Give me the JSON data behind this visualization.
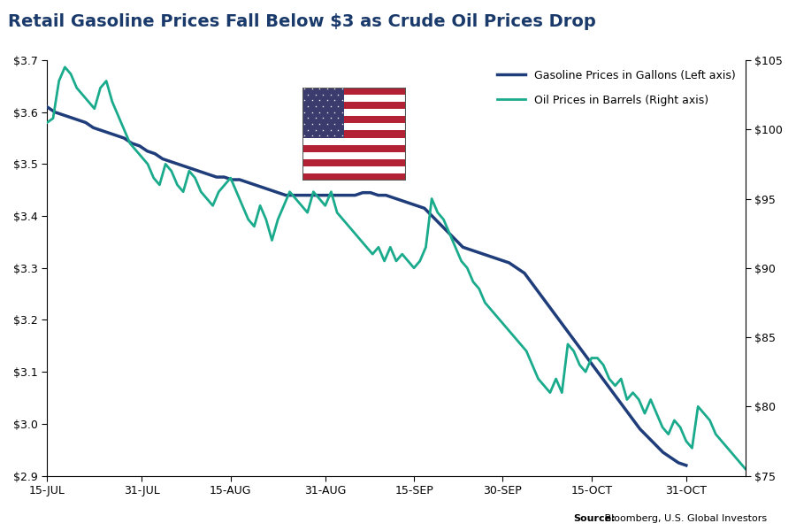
{
  "title": "Retail Gasoline Prices Fall Below $3 as Crude Oil Prices Drop",
  "title_color": "#1a3a6b",
  "title_fontsize": 14,
  "source_bold": "Source:",
  "source_rest": " Bloomberg, U.S. Global Investors",
  "left_ylim": [
    2.9,
    3.7
  ],
  "right_ylim": [
    75,
    105
  ],
  "left_yticks": [
    2.9,
    3.0,
    3.1,
    3.2,
    3.3,
    3.4,
    3.5,
    3.6,
    3.7
  ],
  "right_yticks": [
    75,
    80,
    85,
    90,
    95,
    100,
    105
  ],
  "gasoline_color": "#1f3d7a",
  "oil_color": "#1aaa8c",
  "gasoline_lw": 2.5,
  "oil_lw": 2.0,
  "legend_label_gasoline": "Gasoline Prices in Gallons (Left axis)",
  "legend_label_oil": "Oil Prices in Barrels (Right axis)",
  "gasoline_prices": [
    3.61,
    3.6,
    3.595,
    3.59,
    3.585,
    3.58,
    3.57,
    3.565,
    3.56,
    3.555,
    3.55,
    3.54,
    3.535,
    3.525,
    3.52,
    3.51,
    3.505,
    3.5,
    3.495,
    3.49,
    3.485,
    3.48,
    3.475,
    3.475,
    3.47,
    3.47,
    3.465,
    3.46,
    3.455,
    3.45,
    3.445,
    3.44,
    3.44,
    3.44,
    3.44,
    3.44,
    3.44,
    3.44,
    3.44,
    3.44,
    3.44,
    3.445,
    3.445,
    3.44,
    3.44,
    3.435,
    3.43,
    3.425,
    3.42,
    3.415,
    3.4,
    3.385,
    3.37,
    3.355,
    3.34,
    3.335,
    3.33,
    3.325,
    3.32,
    3.315,
    3.31,
    3.3,
    3.29,
    3.27,
    3.25,
    3.23,
    3.21,
    3.19,
    3.17,
    3.15,
    3.13,
    3.11,
    3.09,
    3.07,
    3.05,
    3.03,
    3.01,
    2.99,
    2.975,
    2.96,
    2.945,
    2.935,
    2.925,
    2.92
  ],
  "oil_prices": [
    100.5,
    100.8,
    103.5,
    104.5,
    104.0,
    103.0,
    102.5,
    102.0,
    101.5,
    103.0,
    103.5,
    102.0,
    101.0,
    100.0,
    99.0,
    98.5,
    98.0,
    97.5,
    96.5,
    96.0,
    97.5,
    97.0,
    96.0,
    95.5,
    97.0,
    96.5,
    95.5,
    95.0,
    94.5,
    95.5,
    96.0,
    96.5,
    95.5,
    94.5,
    93.5,
    93.0,
    94.5,
    93.5,
    92.0,
    93.5,
    94.5,
    95.5,
    95.0,
    94.5,
    94.0,
    95.5,
    95.0,
    94.5,
    95.5,
    94.0,
    93.5,
    93.0,
    92.5,
    92.0,
    91.5,
    91.0,
    91.5,
    90.5,
    91.5,
    90.5,
    91.0,
    90.5,
    90.0,
    90.5,
    91.5,
    95.0,
    94.0,
    93.5,
    92.5,
    91.5,
    90.5,
    90.0,
    89.0,
    88.5,
    87.5,
    87.0,
    86.5,
    86.0,
    85.5,
    85.0,
    84.5,
    84.0,
    83.0,
    82.0,
    81.5,
    81.0,
    82.0,
    81.0,
    84.5,
    84.0,
    83.0,
    82.5,
    83.5,
    83.5,
    83.0,
    82.0,
    81.5,
    82.0,
    80.5,
    81.0,
    80.5,
    79.5,
    80.5,
    79.5,
    78.5,
    78.0,
    79.0,
    78.5,
    77.5,
    77.0,
    80.0,
    79.5,
    79.0,
    78.0,
    77.5,
    77.0,
    76.5,
    76.0,
    75.5
  ],
  "xtick_labels": [
    "15-JUL",
    "31-JUL",
    "15-AUG",
    "31-AUG",
    "15-SEP",
    "30-SEP",
    "15-OCT",
    "31-OCT"
  ],
  "xtick_positions": [
    0,
    16,
    31,
    47,
    62,
    77,
    92,
    108
  ],
  "n_points_gas": 84,
  "n_points_oil": 119
}
